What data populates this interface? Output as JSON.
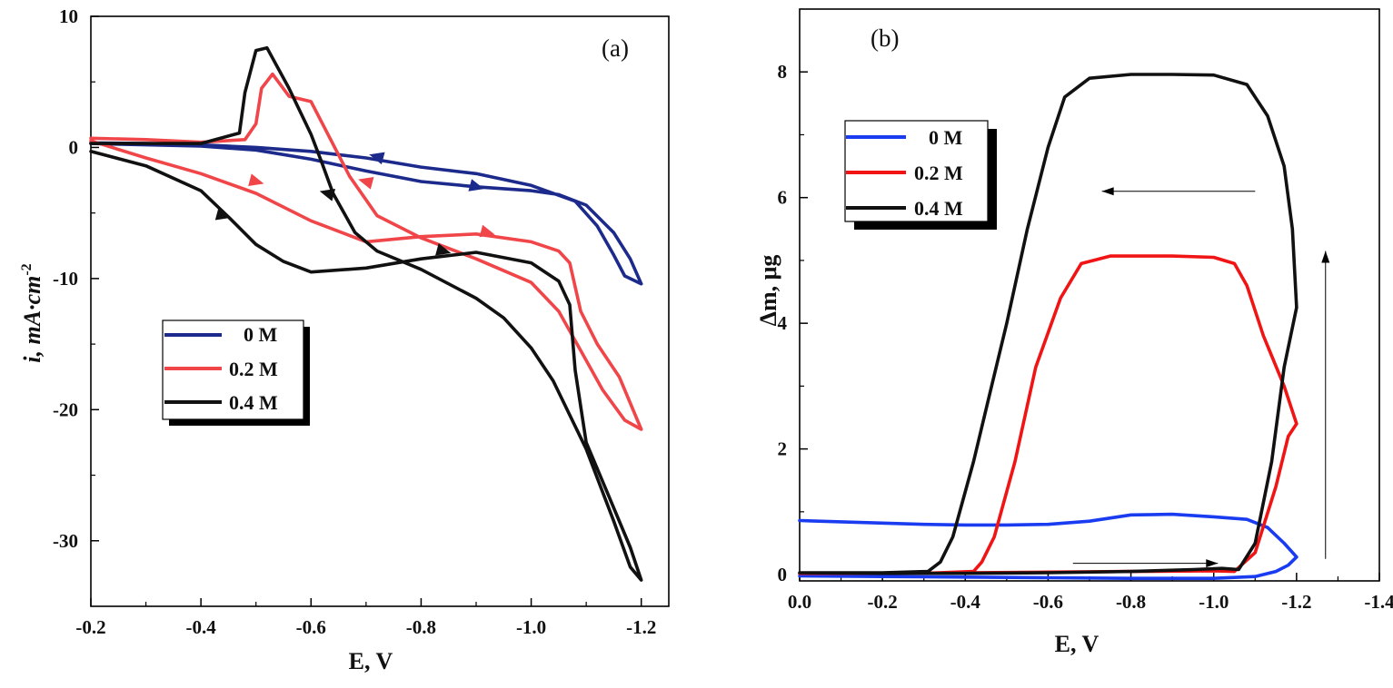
{
  "chart_data": [
    {
      "type": "line",
      "panel_label": "(a)",
      "xlabel": "E, V",
      "ylabel": "i, mA·cm",
      "ylabel_superscript": "-2",
      "xlim": [
        -0.2,
        -1.25
      ],
      "ylim": [
        -35,
        10
      ],
      "x_ticks": [
        -0.2,
        -0.4,
        -0.6,
        -0.8,
        -1.0,
        -1.2
      ],
      "x_tick_labels": [
        "-0.2",
        "-0.4",
        "-0.6",
        "-0.8",
        "-1.0",
        "-1.2"
      ],
      "y_ticks": [
        10,
        0,
        -10,
        -20,
        -30
      ],
      "y_tick_labels": [
        "10",
        "0",
        "-10",
        "-20",
        "-30"
      ],
      "legend": {
        "placement": "center-left",
        "entries": [
          "0 M",
          "0.2 M",
          "0.4 M"
        ]
      },
      "series": [
        {
          "name": "0 M",
          "color": "#1c2a8c",
          "points": [
            [
              -0.2,
              0.3
            ],
            [
              -0.3,
              0.2
            ],
            [
              -0.4,
              0.1
            ],
            [
              -0.5,
              -0.2
            ],
            [
              -0.6,
              -0.9
            ],
            [
              -0.7,
              -1.8
            ],
            [
              -0.8,
              -2.6
            ],
            [
              -0.9,
              -3.0
            ],
            [
              -1.0,
              -3.3
            ],
            [
              -1.05,
              -3.6
            ],
            [
              -1.1,
              -4.4
            ],
            [
              -1.15,
              -6.5
            ],
            [
              -1.18,
              -8.5
            ],
            [
              -1.2,
              -10.4
            ],
            [
              -1.17,
              -9.8
            ],
            [
              -1.15,
              -8.2
            ],
            [
              -1.12,
              -6.0
            ],
            [
              -1.08,
              -4.1
            ],
            [
              -1.0,
              -2.9
            ],
            [
              -0.9,
              -2.0
            ],
            [
              -0.8,
              -1.5
            ],
            [
              -0.7,
              -0.8
            ],
            [
              -0.6,
              -0.3
            ],
            [
              -0.5,
              0.0
            ],
            [
              -0.4,
              0.2
            ],
            [
              -0.3,
              0.3
            ],
            [
              -0.2,
              0.35
            ]
          ],
          "arrows": [
            [
              -0.9,
              -3.0,
              -1
            ],
            [
              -0.72,
              -0.7,
              1
            ]
          ]
        },
        {
          "name": "0.2 M",
          "color": "#f0464a",
          "points": [
            [
              -0.2,
              0.5
            ],
            [
              -0.3,
              -0.8
            ],
            [
              -0.4,
              -2.0
            ],
            [
              -0.5,
              -3.5
            ],
            [
              -0.6,
              -5.6
            ],
            [
              -0.7,
              -7.2
            ],
            [
              -0.8,
              -6.8
            ],
            [
              -0.9,
              -6.6
            ],
            [
              -1.0,
              -7.2
            ],
            [
              -1.05,
              -7.9
            ],
            [
              -1.07,
              -8.8
            ],
            [
              -1.09,
              -12.5
            ],
            [
              -1.12,
              -15.0
            ],
            [
              -1.16,
              -17.5
            ],
            [
              -1.2,
              -21.5
            ],
            [
              -1.17,
              -20.8
            ],
            [
              -1.13,
              -18.5
            ],
            [
              -1.09,
              -15.5
            ],
            [
              -1.05,
              -12.5
            ],
            [
              -1.0,
              -10.3
            ],
            [
              -0.9,
              -8.5
            ],
            [
              -0.8,
              -6.9
            ],
            [
              -0.72,
              -5.2
            ],
            [
              -0.67,
              -2.2
            ],
            [
              -0.6,
              3.5
            ],
            [
              -0.56,
              3.9
            ],
            [
              -0.53,
              5.6
            ],
            [
              -0.51,
              4.5
            ],
            [
              -0.5,
              1.8
            ],
            [
              -0.48,
              0.6
            ],
            [
              -0.4,
              0.4
            ],
            [
              -0.3,
              0.6
            ],
            [
              -0.2,
              0.7
            ]
          ],
          "arrows": [
            [
              -0.5,
              -2.6,
              -1
            ],
            [
              -0.92,
              -6.5,
              -1
            ],
            [
              -0.7,
              -2.6,
              1
            ]
          ]
        },
        {
          "name": "0.4 M",
          "color": "#111111",
          "points": [
            [
              -0.2,
              -0.3
            ],
            [
              -0.3,
              -1.4
            ],
            [
              -0.4,
              -3.3
            ],
            [
              -0.45,
              -5.3
            ],
            [
              -0.5,
              -7.4
            ],
            [
              -0.55,
              -8.7
            ],
            [
              -0.6,
              -9.5
            ],
            [
              -0.7,
              -9.2
            ],
            [
              -0.8,
              -8.5
            ],
            [
              -0.9,
              -8.0
            ],
            [
              -1.0,
              -8.8
            ],
            [
              -1.05,
              -10.2
            ],
            [
              -1.07,
              -12.0
            ],
            [
              -1.08,
              -17.0
            ],
            [
              -1.1,
              -22.5
            ],
            [
              -1.14,
              -26.5
            ],
            [
              -1.18,
              -30.5
            ],
            [
              -1.2,
              -33.0
            ],
            [
              -1.18,
              -32.0
            ],
            [
              -1.15,
              -28.5
            ],
            [
              -1.1,
              -23.0
            ],
            [
              -1.04,
              -17.8
            ],
            [
              -1.0,
              -15.3
            ],
            [
              -0.95,
              -13.0
            ],
            [
              -0.9,
              -11.5
            ],
            [
              -0.8,
              -9.3
            ],
            [
              -0.72,
              -7.9
            ],
            [
              -0.68,
              -6.5
            ],
            [
              -0.64,
              -3.5
            ],
            [
              -0.62,
              -1.2
            ],
            [
              -0.6,
              1.0
            ],
            [
              -0.56,
              4.5
            ],
            [
              -0.52,
              7.6
            ],
            [
              -0.5,
              7.4
            ],
            [
              -0.48,
              4.2
            ],
            [
              -0.47,
              1.1
            ],
            [
              -0.4,
              0.3
            ],
            [
              -0.3,
              0.3
            ],
            [
              -0.2,
              0.3
            ]
          ],
          "arrows": [
            [
              -0.44,
              -5.2,
              -1
            ],
            [
              -0.84,
              -7.9,
              -1
            ],
            [
              -0.63,
              -3.5,
              1
            ]
          ]
        }
      ]
    },
    {
      "type": "line",
      "panel_label": "(b)",
      "xlabel": "E, V",
      "ylabel": "Δm, μg",
      "xlim": [
        0.0,
        -1.4
      ],
      "ylim": [
        -0.1,
        9.0
      ],
      "x_ticks": [
        0.0,
        -0.2,
        -0.4,
        -0.6,
        -0.8,
        -1.0,
        -1.2,
        -1.4
      ],
      "x_tick_labels": [
        "0.0",
        "-0.2",
        "-0.4",
        "-0.6",
        "-0.8",
        "-1.0",
        "-1.2",
        "-1.4"
      ],
      "y_ticks": [
        0,
        2,
        4,
        6,
        8
      ],
      "y_tick_labels": [
        "0",
        "2",
        "4",
        "6",
        "8"
      ],
      "legend": {
        "placement": "top-left",
        "entries": [
          "0 M",
          "0.2 M",
          "0.4 M"
        ]
      },
      "series": [
        {
          "name": "0 M",
          "color": "#1a3cf0",
          "points": [
            [
              0.0,
              -0.02
            ],
            [
              -0.2,
              -0.03
            ],
            [
              -0.4,
              -0.04
            ],
            [
              -0.6,
              -0.05
            ],
            [
              -0.8,
              -0.06
            ],
            [
              -1.0,
              -0.06
            ],
            [
              -1.1,
              -0.03
            ],
            [
              -1.15,
              0.05
            ],
            [
              -1.18,
              0.15
            ],
            [
              -1.2,
              0.28
            ],
            [
              -1.17,
              0.5
            ],
            [
              -1.13,
              0.75
            ],
            [
              -1.08,
              0.88
            ],
            [
              -1.0,
              0.92
            ],
            [
              -0.9,
              0.96
            ],
            [
              -0.8,
              0.95
            ],
            [
              -0.7,
              0.85
            ],
            [
              -0.6,
              0.8
            ],
            [
              -0.5,
              0.79
            ],
            [
              -0.4,
              0.79
            ],
            [
              -0.3,
              0.8
            ],
            [
              -0.2,
              0.82
            ],
            [
              -0.1,
              0.84
            ],
            [
              0.0,
              0.86
            ]
          ]
        },
        {
          "name": "0.2 M",
          "color": "#f01414",
          "points": [
            [
              0.0,
              0.02
            ],
            [
              -0.2,
              0.02
            ],
            [
              -0.4,
              0.03
            ],
            [
              -0.6,
              0.04
            ],
            [
              -0.8,
              0.05
            ],
            [
              -1.0,
              0.06
            ],
            [
              -1.05,
              0.05
            ],
            [
              -1.1,
              0.35
            ],
            [
              -1.15,
              1.4
            ],
            [
              -1.18,
              2.2
            ],
            [
              -1.2,
              2.4
            ],
            [
              -1.17,
              3.0
            ],
            [
              -1.12,
              3.8
            ],
            [
              -1.08,
              4.6
            ],
            [
              -1.05,
              4.95
            ],
            [
              -1.0,
              5.05
            ],
            [
              -0.9,
              5.07
            ],
            [
              -0.75,
              5.07
            ],
            [
              -0.68,
              4.95
            ],
            [
              -0.63,
              4.4
            ],
            [
              -0.57,
              3.3
            ],
            [
              -0.52,
              1.8
            ],
            [
              -0.47,
              0.6
            ],
            [
              -0.44,
              0.2
            ],
            [
              -0.42,
              0.05
            ],
            [
              -0.3,
              0.02
            ],
            [
              -0.2,
              0.02
            ],
            [
              0.0,
              0.02
            ]
          ]
        },
        {
          "name": "0.4 M",
          "color": "#111111",
          "points": [
            [
              0.0,
              0.03
            ],
            [
              -0.2,
              0.02
            ],
            [
              -0.4,
              0.02
            ],
            [
              -0.6,
              0.03
            ],
            [
              -0.8,
              0.05
            ],
            [
              -0.95,
              0.08
            ],
            [
              -1.02,
              0.1
            ],
            [
              -1.06,
              0.08
            ],
            [
              -1.1,
              0.5
            ],
            [
              -1.14,
              1.8
            ],
            [
              -1.17,
              3.3
            ],
            [
              -1.2,
              4.25
            ],
            [
              -1.19,
              5.5
            ],
            [
              -1.17,
              6.5
            ],
            [
              -1.13,
              7.3
            ],
            [
              -1.08,
              7.8
            ],
            [
              -1.0,
              7.95
            ],
            [
              -0.9,
              7.96
            ],
            [
              -0.8,
              7.96
            ],
            [
              -0.7,
              7.9
            ],
            [
              -0.64,
              7.6
            ],
            [
              -0.6,
              6.8
            ],
            [
              -0.55,
              5.5
            ],
            [
              -0.5,
              4.0
            ],
            [
              -0.46,
              2.9
            ],
            [
              -0.42,
              1.8
            ],
            [
              -0.37,
              0.6
            ],
            [
              -0.34,
              0.2
            ],
            [
              -0.31,
              0.05
            ],
            [
              -0.2,
              0.03
            ],
            [
              0.0,
              0.03
            ]
          ]
        }
      ],
      "annotations": {
        "arrow_left": {
          "from": [
            -1.1,
            6.1
          ],
          "to": [
            -0.73,
            6.1
          ]
        },
        "arrow_right": {
          "from": [
            -0.66,
            0.18
          ],
          "to": [
            -1.01,
            0.18
          ]
        },
        "arrow_up": {
          "from": [
            -1.27,
            0.25
          ],
          "to": [
            -1.27,
            5.15
          ]
        }
      }
    }
  ]
}
